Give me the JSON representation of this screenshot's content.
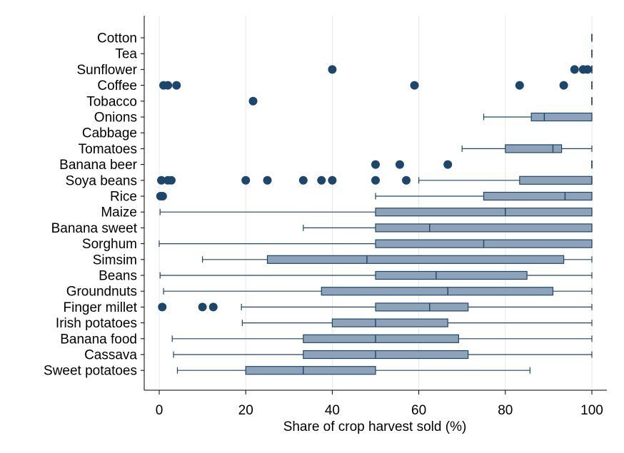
{
  "chart_data": {
    "type": "box",
    "orientation": "horizontal",
    "xlabel": "Share of crop harvest sold (%)",
    "xlim": [
      0,
      100
    ],
    "xticks": [
      0,
      20,
      40,
      60,
      80,
      100
    ],
    "grid": "vertical",
    "legend": "none",
    "colors": {
      "box_fill": "#8EA3B9",
      "stroke": "#1C466B",
      "marker": "#1C466B",
      "grid": "#E8E8E8"
    },
    "categories": [
      {
        "label": "Cotton",
        "median": 100,
        "q1": 100,
        "q3": 100,
        "whisker_low": 100,
        "whisker_high": 100,
        "outliers": []
      },
      {
        "label": "Tea",
        "median": 100,
        "q1": 100,
        "q3": 100,
        "whisker_low": 100,
        "whisker_high": 100,
        "outliers": []
      },
      {
        "label": "Sunflower",
        "median": 100,
        "q1": 100,
        "q3": 100,
        "whisker_low": 100,
        "whisker_high": 100,
        "outliers": [
          40,
          96,
          98,
          99
        ]
      },
      {
        "label": "Coffee",
        "median": 100,
        "q1": 100,
        "q3": 100,
        "whisker_low": 100,
        "whisker_high": 100,
        "outliers": [
          1,
          2,
          4,
          59,
          83.3,
          93.5
        ]
      },
      {
        "label": "Tobacco",
        "median": 100,
        "q1": 100,
        "q3": 100,
        "whisker_low": 100,
        "whisker_high": 100,
        "outliers": [
          21.7
        ]
      },
      {
        "label": "Onions",
        "median": 89,
        "q1": 86,
        "q3": 100,
        "whisker_low": 75,
        "whisker_high": 100,
        "outliers": []
      },
      {
        "label": "Cabbage",
        "median": null,
        "q1": null,
        "q3": null,
        "whisker_low": null,
        "whisker_high": null,
        "outliers": []
      },
      {
        "label": "Tomatoes",
        "median": 91,
        "q1": 80,
        "q3": 93,
        "whisker_low": 70,
        "whisker_high": 100,
        "outliers": []
      },
      {
        "label": "Banana beer",
        "median": 100,
        "q1": 100,
        "q3": 100,
        "whisker_low": 100,
        "whisker_high": 100,
        "outliers": [
          50,
          55.6,
          66.7
        ]
      },
      {
        "label": "Soya beans",
        "median": 100,
        "q1": 83.3,
        "q3": 100,
        "whisker_low": 60,
        "whisker_high": 100,
        "outliers": [
          0.5,
          2,
          2.8,
          20,
          25,
          33.3,
          37.5,
          40,
          50,
          57.1
        ]
      },
      {
        "label": "Rice",
        "median": 93.8,
        "q1": 75,
        "q3": 100,
        "whisker_low": 50,
        "whisker_high": 100,
        "outliers": [
          0.3,
          0.8
        ]
      },
      {
        "label": "Maize",
        "median": 80,
        "q1": 50,
        "q3": 100,
        "whisker_low": 0.2,
        "whisker_high": 100,
        "outliers": []
      },
      {
        "label": "Banana sweet",
        "median": 62.5,
        "q1": 50,
        "q3": 100,
        "whisker_low": 33.3,
        "whisker_high": 100,
        "outliers": []
      },
      {
        "label": "Sorghum",
        "median": 75,
        "q1": 50,
        "q3": 100,
        "whisker_low": 0,
        "whisker_high": 100,
        "outliers": []
      },
      {
        "label": "Simsim",
        "median": 48,
        "q1": 25,
        "q3": 93.5,
        "whisker_low": 10,
        "whisker_high": 100,
        "outliers": []
      },
      {
        "label": "Beans",
        "median": 64,
        "q1": 50,
        "q3": 85,
        "whisker_low": 0.2,
        "whisker_high": 100,
        "outliers": []
      },
      {
        "label": "Groundnuts",
        "median": 66.7,
        "q1": 37.5,
        "q3": 91,
        "whisker_low": 1,
        "whisker_high": 100,
        "outliers": []
      },
      {
        "label": "Finger millet",
        "median": 62.5,
        "q1": 50,
        "q3": 71.4,
        "whisker_low": 19,
        "whisker_high": 100,
        "outliers": [
          0.7,
          10,
          12.5
        ]
      },
      {
        "label": "Irish potatoes",
        "median": 50,
        "q1": 40,
        "q3": 66.7,
        "whisker_low": 19.2,
        "whisker_high": 100,
        "outliers": []
      },
      {
        "label": "Banana food",
        "median": 50,
        "q1": 33.3,
        "q3": 69.2,
        "whisker_low": 3,
        "whisker_high": 100,
        "outliers": []
      },
      {
        "label": "Cassava",
        "median": 50,
        "q1": 33.3,
        "q3": 71.4,
        "whisker_low": 3.3,
        "whisker_high": 100,
        "outliers": []
      },
      {
        "label": "Sweet potatoes",
        "median": 33.3,
        "q1": 20,
        "q3": 50,
        "whisker_low": 4.2,
        "whisker_high": 85.7,
        "outliers": []
      }
    ]
  }
}
